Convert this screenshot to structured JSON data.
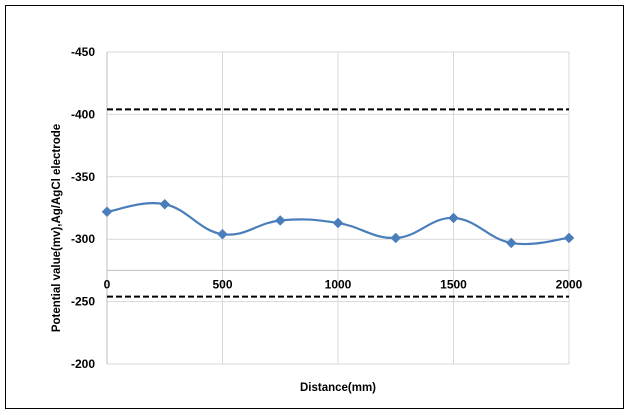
{
  "chart_data": {
    "type": "line",
    "xlabel": "Distance(mm)",
    "ylabel": "Potential value(mv),Ag/AgCl electrode",
    "xlim": [
      0,
      2000
    ],
    "ylim": [
      -200,
      -450
    ],
    "y_axis_reversed": true,
    "x_ticks": [
      "0",
      "500",
      "1000",
      "1500",
      "2000"
    ],
    "y_ticks": [
      "-450",
      "-400",
      "-350",
      "-300",
      "-250",
      "-200"
    ],
    "x_tick_values": [
      0,
      500,
      1000,
      1500,
      2000
    ],
    "y_tick_values": [
      -450,
      -400,
      -350,
      -300,
      -250,
      -200
    ],
    "grid": "vertical and horizontal gridlines",
    "series": [
      {
        "x": [
          0,
          250,
          500,
          750,
          1000,
          1250,
          1500,
          1750,
          2000
        ],
        "values": [
          -322,
          -328,
          -304,
          -315,
          -313,
          -301,
          -317,
          -297,
          -301
        ],
        "color": "#4a7ebb",
        "marker": "diamond",
        "smooth": true
      }
    ],
    "reference_lines": [
      {
        "y": -404,
        "style": "dashed",
        "color": "#000000"
      },
      {
        "y": -254,
        "style": "dashed",
        "color": "#000000"
      }
    ],
    "x_axis_crosses_at": -275
  }
}
